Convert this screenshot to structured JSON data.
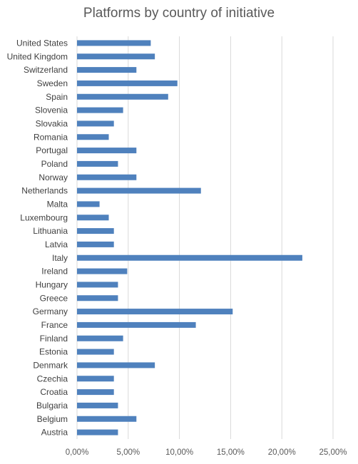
{
  "chart_data": {
    "type": "bar",
    "orientation": "horizontal",
    "title": "Platforms by country of initiative",
    "xlabel": "",
    "ylabel": "",
    "categories": [
      "United States",
      "United Kingdom",
      "Switzerland",
      "Sweden",
      "Spain",
      "Slovenia",
      "Slovakia",
      "Romania",
      "Portugal",
      "Poland",
      "Norway",
      "Netherlands",
      "Malta",
      "Luxembourg",
      "Lithuania",
      "Latvia",
      "Italy",
      "Ireland",
      "Hungary",
      "Greece",
      "Germany",
      "France",
      "Finland",
      "Estonia",
      "Denmark",
      "Czechia",
      "Croatia",
      "Bulgaria",
      "Belgium",
      "Austria"
    ],
    "values": [
      7.2,
      7.6,
      5.8,
      9.8,
      8.9,
      4.5,
      3.6,
      3.1,
      5.8,
      4.0,
      5.8,
      12.1,
      2.2,
      3.1,
      3.6,
      3.6,
      22.0,
      4.9,
      4.0,
      4.0,
      15.2,
      11.6,
      4.5,
      3.6,
      7.6,
      3.6,
      3.6,
      4.0,
      5.8,
      4.0
    ],
    "xlim": [
      0,
      25
    ],
    "x_ticks": [
      0,
      5,
      10,
      15,
      20,
      25
    ],
    "x_tick_labels": [
      "0,00%",
      "5,00%",
      "10,00%",
      "15,00%",
      "20,00%",
      "25,00%"
    ],
    "grid": true,
    "legend": "none",
    "bar_color": "#4F81BD",
    "grid_color": "#D9D9D9"
  }
}
